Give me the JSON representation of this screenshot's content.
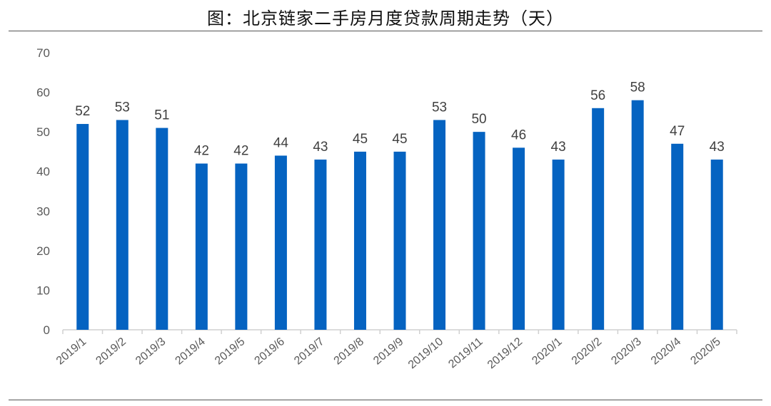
{
  "chart_data": {
    "type": "bar",
    "title": "图：北京链家二手房月度贷款周期走势（天）",
    "categories": [
      "2019/1",
      "2019/2",
      "2019/3",
      "2019/4",
      "2019/5",
      "2019/6",
      "2019/7",
      "2019/8",
      "2019/9",
      "2019/10",
      "2019/11",
      "2019/12",
      "2020/1",
      "2020/2",
      "2020/3",
      "2020/4",
      "2020/5"
    ],
    "values": [
      52,
      53,
      51,
      42,
      42,
      44,
      43,
      45,
      45,
      53,
      50,
      46,
      43,
      56,
      58,
      47,
      43
    ],
    "xlabel": "",
    "ylabel": "",
    "ylim": [
      0,
      70
    ],
    "yticks": [
      0,
      10,
      20,
      30,
      40,
      50,
      60,
      70
    ],
    "grid": false,
    "legend": "none",
    "bar_color": "#0563C1"
  }
}
